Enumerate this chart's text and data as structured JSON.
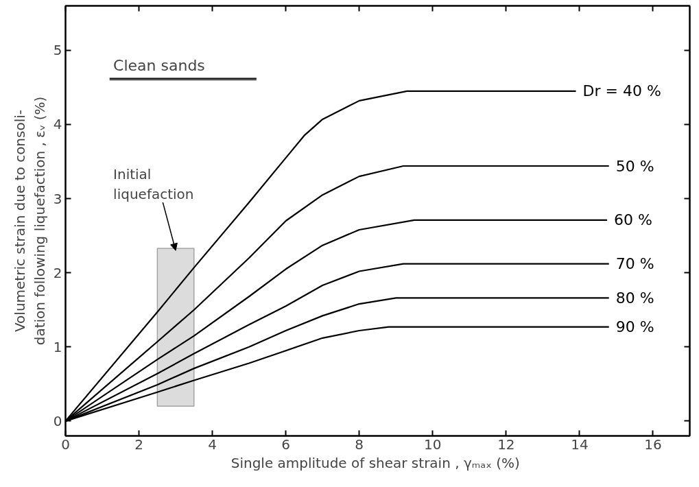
{
  "chart_data": {
    "type": "line",
    "xlabel": "Single  amplitude of shear strain , γₘₐₓ (%)",
    "ylabel": "Volumetric strain due to consoli-\ndation following liquefaction , εᵥ (%)",
    "xlim": [
      0,
      17
    ],
    "ylim": [
      -0.2,
      5.6
    ],
    "xticks": [
      0,
      2,
      4,
      6,
      8,
      10,
      12,
      14,
      16
    ],
    "yticks": [
      0,
      1,
      2,
      3,
      4,
      5
    ],
    "grid": false,
    "legend": "right",
    "marker": "none",
    "line_style": "solid",
    "annotations": [
      "Clean sands"
    ],
    "bands": [
      {
        "axis": "x",
        "from": 2.5,
        "to": 3.5,
        "label": "Initial\nliquefaction",
        "color": "#dcdcdc"
      }
    ],
    "series": [
      {
        "name": "Dr = 40 %",
        "color": "#000000",
        "x": [
          0,
          2.5,
          3.5,
          5,
          6,
          6.5,
          7,
          8,
          9.3,
          13.9
        ],
        "values": [
          0,
          1.47,
          2.07,
          2.95,
          3.55,
          3.85,
          4.07,
          4.32,
          4.45,
          4.45
        ]
      },
      {
        "name": "50 %",
        "color": "#000000",
        "x": [
          0,
          2.5,
          3.5,
          5,
          6,
          7,
          8,
          9.2,
          14.8
        ],
        "values": [
          0,
          1.07,
          1.5,
          2.2,
          2.7,
          3.05,
          3.3,
          3.44,
          3.44
        ]
      },
      {
        "name": "60 %",
        "color": "#000000",
        "x": [
          0,
          2.5,
          3.5,
          5,
          6,
          7,
          8,
          9.5,
          14.75
        ],
        "values": [
          0,
          0.83,
          1.15,
          1.68,
          2.05,
          2.37,
          2.58,
          2.71,
          2.71
        ]
      },
      {
        "name": "70 %",
        "color": "#000000",
        "x": [
          0,
          2.5,
          3.5,
          5,
          6,
          7,
          8,
          9.2,
          14.8
        ],
        "values": [
          0,
          0.64,
          0.91,
          1.3,
          1.55,
          1.83,
          2.02,
          2.12,
          2.12
        ]
      },
      {
        "name": "80 %",
        "color": "#000000",
        "x": [
          0,
          2.5,
          3.5,
          5,
          6,
          7,
          8,
          9,
          14.8
        ],
        "values": [
          0,
          0.49,
          0.71,
          1.0,
          1.22,
          1.42,
          1.58,
          1.66,
          1.66
        ]
      },
      {
        "name": "90 %",
        "color": "#000000",
        "x": [
          0,
          2.5,
          3.5,
          5,
          6,
          7,
          8,
          8.8,
          14.8
        ],
        "values": [
          0,
          0.39,
          0.55,
          0.78,
          0.95,
          1.12,
          1.22,
          1.27,
          1.27
        ]
      }
    ]
  }
}
